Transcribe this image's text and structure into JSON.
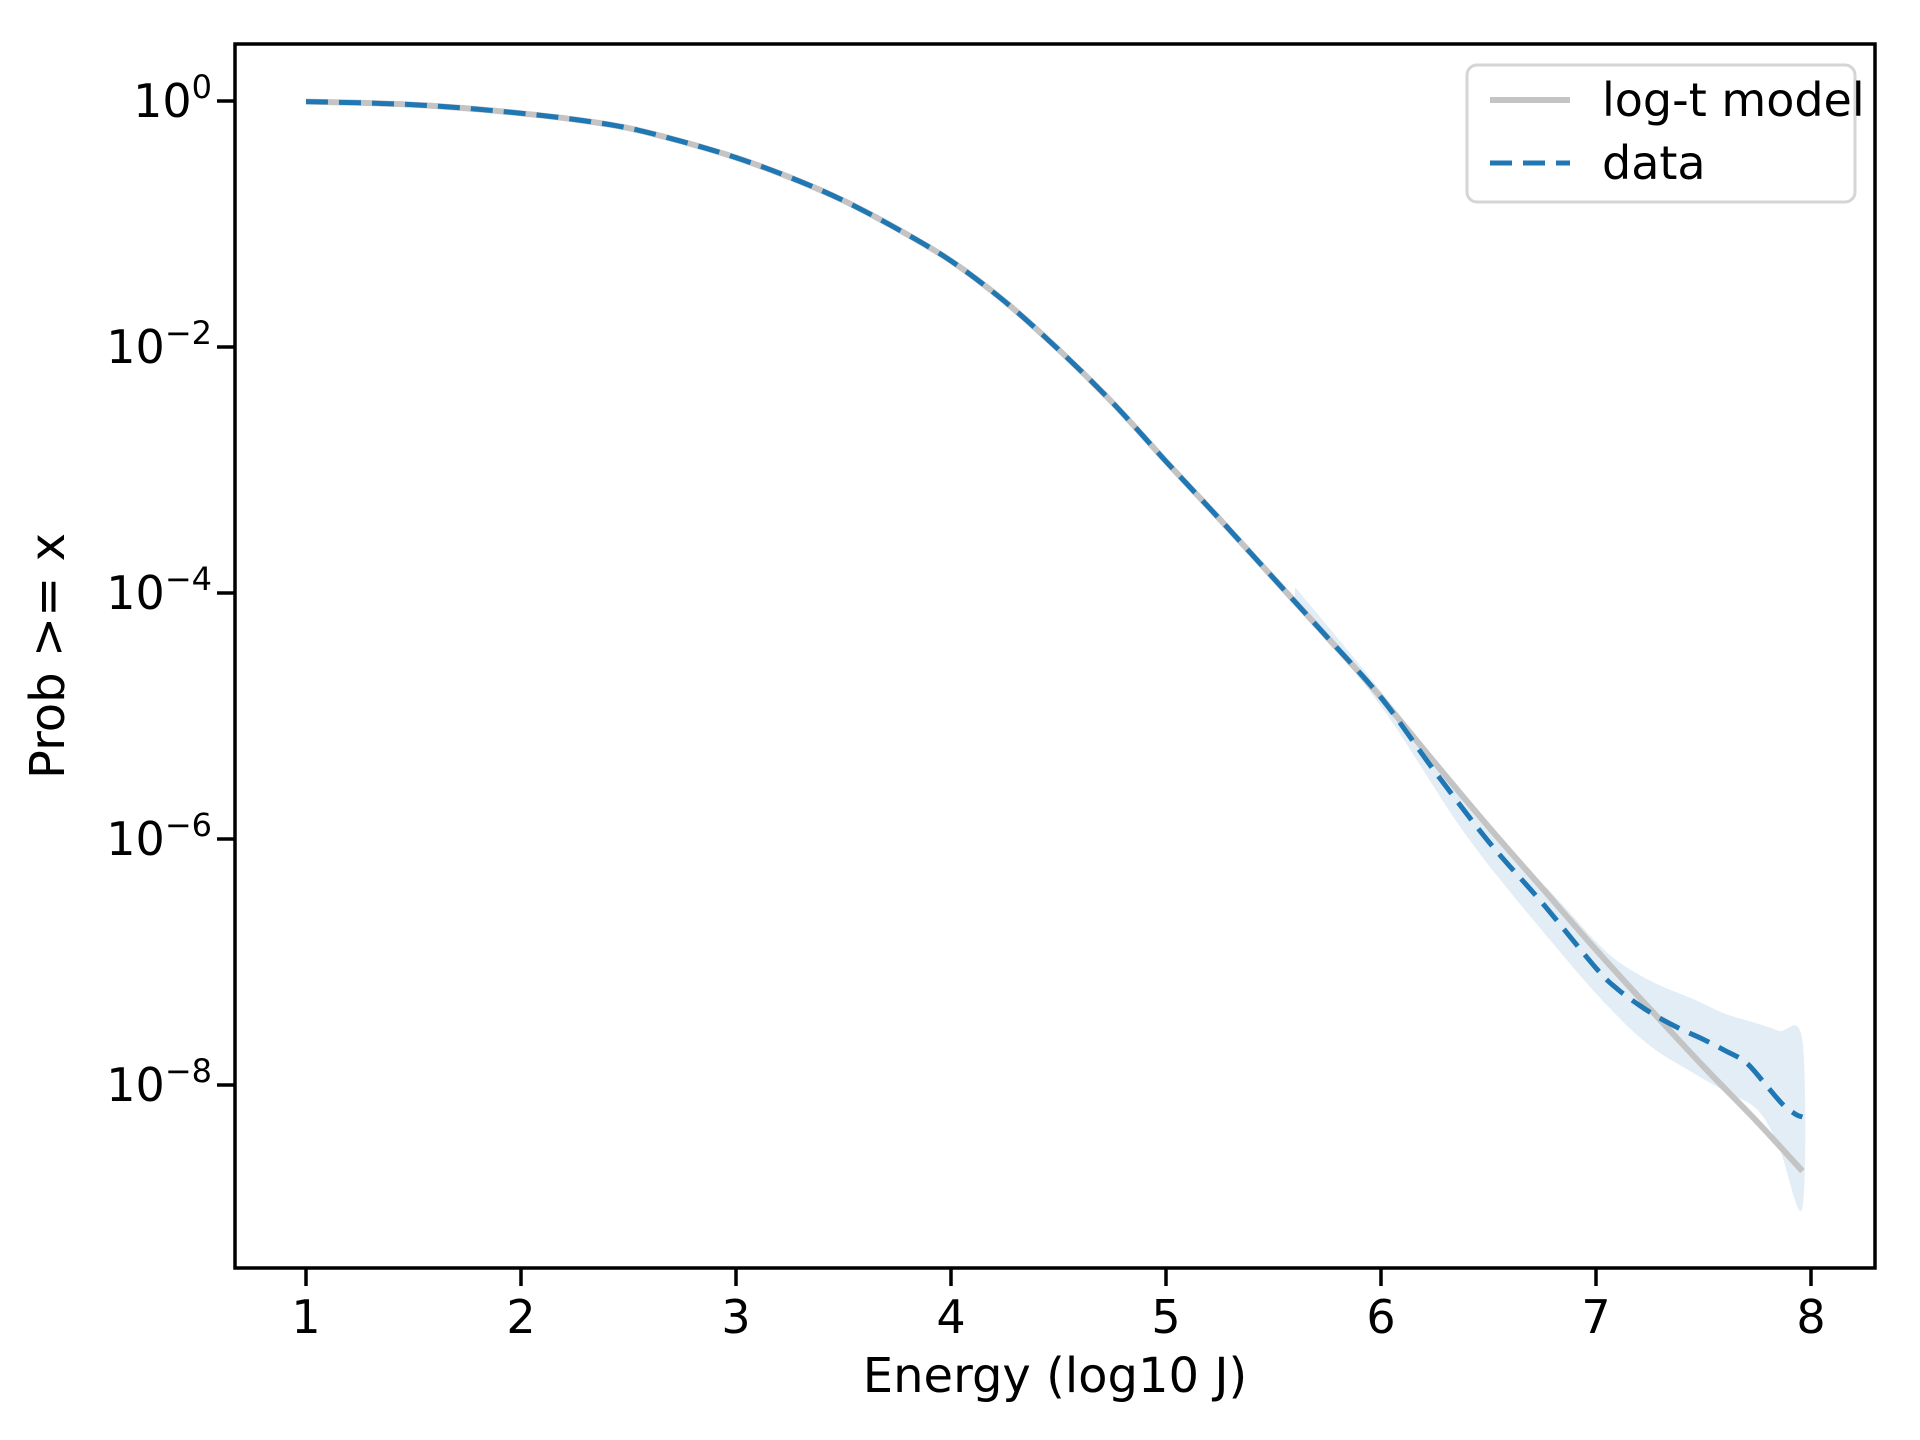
{
  "chart_data": {
    "type": "line",
    "title": "",
    "xlabel": "Energy (log10 J)",
    "ylabel": "Prob >= x",
    "y_scale": "log",
    "grid": false,
    "x_ticks": [
      1,
      2,
      3,
      4,
      5,
      6,
      7,
      8
    ],
    "y_tick_exponents": [
      0,
      -2,
      -4,
      -6,
      -8
    ],
    "xlim": [
      0.67,
      8.3
    ],
    "ylim_log10": [
      -9.49,
      0.46
    ],
    "legend": {
      "position": "upper right",
      "entries": [
        {
          "label": "log-t model",
          "color": "#c4c4c4",
          "style": "solid"
        },
        {
          "label": "data",
          "color": "#1f77b4",
          "style": "dashed"
        }
      ]
    },
    "colors": {
      "model_line": "#c4c4c4",
      "data_line": "#1f77b4",
      "band_fill": "#1f77b4",
      "band_opacity": 0.13,
      "axes": "#000000",
      "legend_border": "#d5d5d5"
    },
    "series": [
      {
        "name": "log-t model",
        "style": "solid",
        "x": [
          1.0,
          1.25,
          1.5,
          1.75,
          2.0,
          2.25,
          2.5,
          2.75,
          3.0,
          3.25,
          3.5,
          3.75,
          4.0,
          4.25,
          4.5,
          4.75,
          5.0,
          5.25,
          5.5,
          5.75,
          6.0,
          6.25,
          6.5,
          6.75,
          7.0,
          7.25,
          7.5,
          7.75,
          7.96
        ],
        "log10_p": [
          -0.005,
          -0.015,
          -0.03,
          -0.06,
          -0.1,
          -0.15,
          -0.22,
          -0.33,
          -0.46,
          -0.62,
          -0.81,
          -1.04,
          -1.3,
          -1.63,
          -2.02,
          -2.45,
          -2.93,
          -3.4,
          -3.88,
          -4.36,
          -4.85,
          -5.38,
          -5.9,
          -6.4,
          -6.9,
          -7.38,
          -7.85,
          -8.3,
          -8.7
        ]
      },
      {
        "name": "data",
        "style": "dashed",
        "x": [
          1.0,
          1.25,
          1.5,
          1.75,
          2.0,
          2.25,
          2.5,
          2.75,
          3.0,
          3.25,
          3.5,
          3.75,
          4.0,
          4.25,
          4.5,
          4.75,
          5.0,
          5.25,
          5.5,
          5.75,
          6.0,
          6.25,
          6.5,
          6.75,
          7.0,
          7.1,
          7.2,
          7.3,
          7.4,
          7.5,
          7.6,
          7.7,
          7.8,
          7.87,
          7.93,
          7.96
        ],
        "log10_p": [
          -0.005,
          -0.015,
          -0.03,
          -0.06,
          -0.1,
          -0.15,
          -0.22,
          -0.33,
          -0.46,
          -0.62,
          -0.81,
          -1.04,
          -1.3,
          -1.63,
          -2.02,
          -2.45,
          -2.93,
          -3.4,
          -3.88,
          -4.36,
          -4.85,
          -5.45,
          -6.02,
          -6.52,
          -7.05,
          -7.22,
          -7.35,
          -7.46,
          -7.55,
          -7.63,
          -7.72,
          -7.82,
          -8.02,
          -8.16,
          -8.24,
          -8.26
        ]
      }
    ],
    "confidence_band": {
      "x": [
        5.6,
        6.0,
        6.4,
        6.8,
        7.05,
        7.25,
        7.45,
        7.6,
        7.75,
        7.85,
        7.96
      ],
      "log10_upper": [
        -3.95,
        -4.8,
        -5.72,
        -6.45,
        -6.92,
        -7.15,
        -7.3,
        -7.42,
        -7.5,
        -7.56,
        -7.64
      ],
      "log10_lower": [
        -4.05,
        -4.92,
        -5.98,
        -6.85,
        -7.35,
        -7.68,
        -7.9,
        -8.05,
        -8.2,
        -8.5,
        -9.0
      ]
    }
  }
}
